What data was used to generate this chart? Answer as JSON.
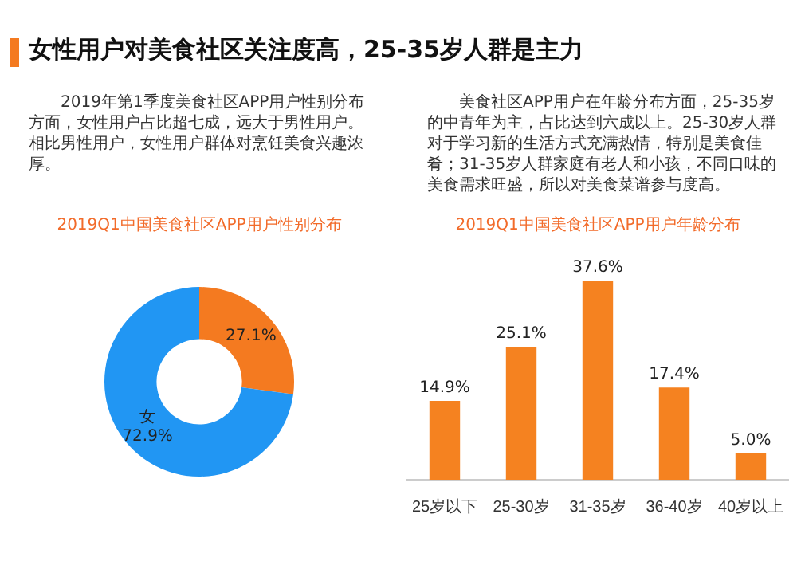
{
  "chart_data": [
    {
      "type": "donut",
      "title": "2019Q1中国美食社区APP用户性别分布",
      "categories": [
        null,
        "女"
      ],
      "values": [
        27.1,
        72.9
      ],
      "colors": [
        "#f47a20",
        "#2196f3"
      ],
      "value_labels": [
        "27.1%",
        "72.9%"
      ],
      "legend": false,
      "annotations": [
        "女性用户对美食社区关注度高，25-35岁人群是主力",
        "2019年第1季度美食社区APP用户性别分布方面，女性用户占比超七成，远大于男性用户。相比男性用户，女性用户群体对烹饪美食兴趣浓厚。"
      ]
    },
    {
      "type": "bar",
      "title": "2019Q1中国美食社区APP用户年龄分布",
      "categories": [
        "25岁以下",
        "25-30岁",
        "31-35岁",
        "36-40岁",
        "40岁以上"
      ],
      "values": [
        14.9,
        25.1,
        37.6,
        17.4,
        5.0
      ],
      "color": "#f58220",
      "value_labels": [
        "14.9%",
        "25.1%",
        "37.6%",
        "17.4%",
        "5.0%"
      ],
      "legend": false,
      "annotations": [
        "美食社区APP用户在年龄分布方面，25-35岁的中青年为主，占比达到六成以上。25-30岁人群对于学习新的生活方式充满热情，特别是美食佳肴；31-35岁人群家庭有老人和小孩，不同口味的美食需求旺盛，所以对美食菜谱参与度高。"
      ]
    }
  ]
}
